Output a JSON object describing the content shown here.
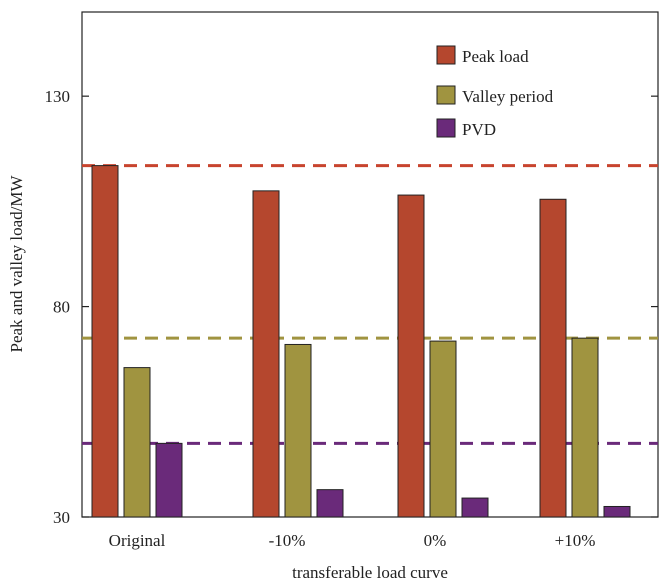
{
  "chart_data": {
    "type": "bar",
    "xlabel": "transferable load curve",
    "ylabel": "Peak and valley load/MW",
    "categories": [
      "Original",
      "-10%",
      "0%",
      "+10%"
    ],
    "ylim": [
      30,
      150
    ],
    "yticks": [
      30,
      80,
      130
    ],
    "series": [
      {
        "name": "Peak load",
        "color": "#b5472e",
        "values": [
          113.5,
          107.5,
          106.5,
          105.5
        ]
      },
      {
        "name": "Valley period",
        "color": "#a09440",
        "values": [
          65.5,
          71,
          71.8,
          72.5
        ]
      },
      {
        "name": "PVD",
        "color": "#6a2a7a",
        "values": [
          47.5,
          36.5,
          34.5,
          32.5
        ]
      }
    ],
    "reference_lines": [
      {
        "series": "Peak load",
        "value": 113.5,
        "color": "#c8442e"
      },
      {
        "series": "Valley period",
        "value": 72.5,
        "color": "#a09440"
      },
      {
        "series": "PVD",
        "value": 47.5,
        "color": "#6a2a7a"
      }
    ],
    "legend_position": "top-right"
  }
}
